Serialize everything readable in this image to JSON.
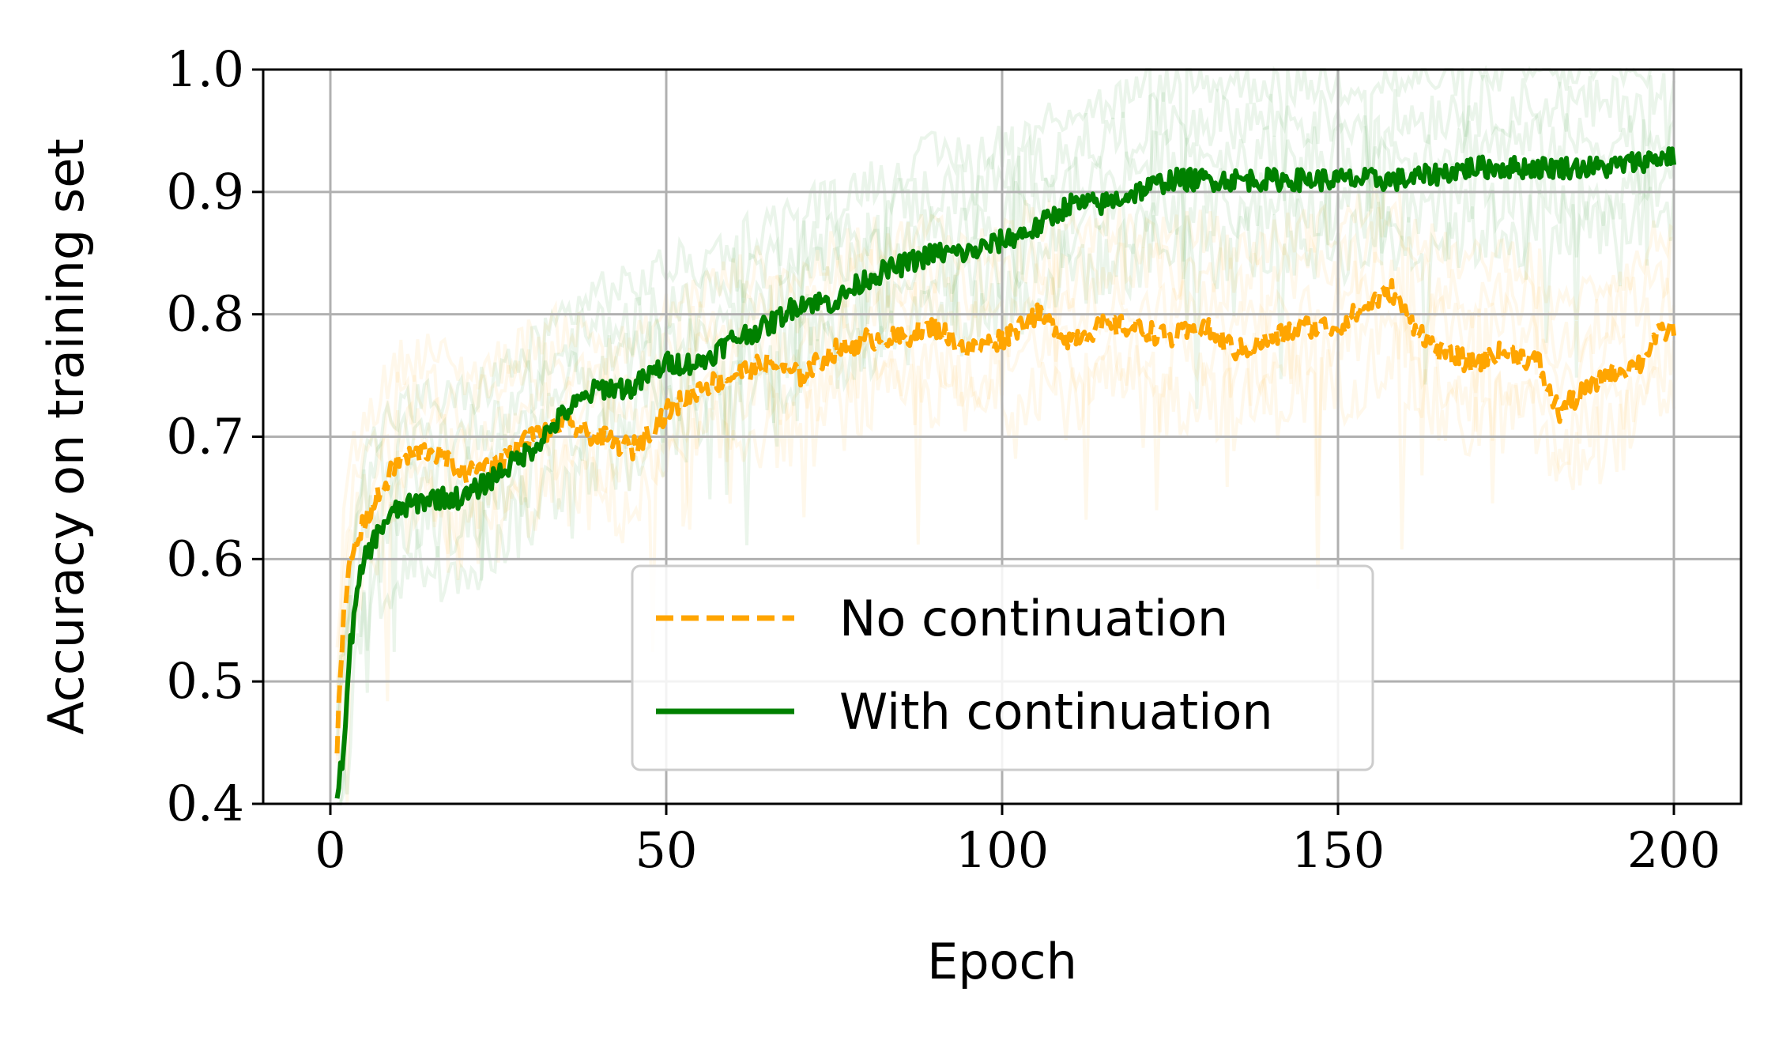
{
  "chart_data": {
    "type": "line",
    "title": "",
    "xlabel": "Epoch",
    "ylabel": "Accuracy on training set",
    "xlim": [
      -10,
      210
    ],
    "ylim": [
      0.4,
      1.0
    ],
    "xticks": [
      0,
      50,
      100,
      150,
      200
    ],
    "yticks": [
      0.4,
      0.5,
      0.6,
      0.7,
      0.8,
      0.9,
      1.0
    ],
    "xtick_labels": [
      "0",
      "50",
      "100",
      "150",
      "200"
    ],
    "ytick_labels": [
      "0.4",
      "0.5",
      "0.6",
      "0.7",
      "0.8",
      "0.9",
      "1.0"
    ],
    "grid": true,
    "legend_position": "lower-center",
    "series": [
      {
        "name": "No continuation",
        "color": "#FFA500",
        "style": "dashed",
        "x": [
          1,
          2,
          3,
          5,
          8,
          10,
          15,
          20,
          25,
          30,
          35,
          40,
          45,
          50,
          55,
          60,
          65,
          70,
          75,
          80,
          85,
          90,
          95,
          100,
          105,
          110,
          115,
          120,
          125,
          130,
          135,
          140,
          145,
          150,
          155,
          158,
          160,
          165,
          170,
          175,
          180,
          181,
          183,
          185,
          190,
          195,
          197,
          200
        ],
        "y": [
          0.45,
          0.55,
          0.6,
          0.63,
          0.66,
          0.68,
          0.69,
          0.67,
          0.68,
          0.7,
          0.71,
          0.7,
          0.69,
          0.72,
          0.74,
          0.75,
          0.76,
          0.75,
          0.77,
          0.78,
          0.78,
          0.79,
          0.77,
          0.78,
          0.8,
          0.78,
          0.79,
          0.79,
          0.78,
          0.79,
          0.77,
          0.78,
          0.79,
          0.79,
          0.81,
          0.82,
          0.8,
          0.77,
          0.76,
          0.77,
          0.76,
          0.74,
          0.72,
          0.73,
          0.75,
          0.76,
          0.78,
          0.79
        ]
      },
      {
        "name": "With continuation",
        "color": "#008000",
        "style": "solid",
        "x": [
          1,
          2,
          3,
          4,
          5,
          8,
          10,
          15,
          20,
          25,
          30,
          35,
          40,
          45,
          50,
          55,
          60,
          65,
          70,
          75,
          80,
          85,
          90,
          95,
          100,
          105,
          110,
          115,
          120,
          125,
          130,
          140,
          150,
          160,
          170,
          180,
          190,
          200
        ],
        "y": [
          0.4,
          0.45,
          0.53,
          0.57,
          0.6,
          0.63,
          0.64,
          0.65,
          0.65,
          0.67,
          0.69,
          0.72,
          0.74,
          0.74,
          0.76,
          0.76,
          0.78,
          0.79,
          0.81,
          0.81,
          0.83,
          0.84,
          0.85,
          0.85,
          0.86,
          0.87,
          0.89,
          0.89,
          0.9,
          0.91,
          0.91,
          0.91,
          0.91,
          0.91,
          0.92,
          0.92,
          0.92,
          0.93
        ]
      }
    ]
  }
}
